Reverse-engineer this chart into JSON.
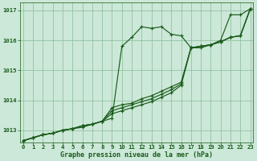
{
  "title": "Graphe pression niveau de la mer (hPa)",
  "xlabel": "Graphe pression niveau de la mer (hPa)",
  "ylim": [
    1012.6,
    1017.25
  ],
  "xlim": [
    -0.3,
    23.3
  ],
  "yticks": [
    1013,
    1014,
    1015,
    1016,
    1017
  ],
  "xticks": [
    0,
    1,
    2,
    3,
    4,
    5,
    6,
    7,
    8,
    9,
    10,
    11,
    12,
    13,
    14,
    15,
    16,
    17,
    18,
    19,
    20,
    21,
    22,
    23
  ],
  "bg_color": "#cce8d8",
  "grid_color": "#88bb99",
  "line_color": "#1a5c1a",
  "curves": [
    [
      1012.65,
      1012.75,
      1012.85,
      1012.9,
      1013.0,
      1013.05,
      1013.1,
      1013.2,
      1013.3,
      1013.4,
      1015.8,
      1016.1,
      1016.45,
      1016.4,
      1016.45,
      1016.2,
      1016.15,
      1015.75,
      1015.75,
      1015.85,
      1016.0,
      1016.85,
      1016.85,
      1017.05
    ],
    [
      1012.65,
      1012.75,
      1012.85,
      1012.9,
      1013.0,
      1013.05,
      1013.15,
      1013.2,
      1013.3,
      1013.75,
      1013.85,
      1013.9,
      1014.05,
      1014.15,
      1014.3,
      1014.45,
      1014.6,
      1015.75,
      1015.8,
      1015.85,
      1015.95,
      1016.1,
      1016.15,
      1017.05
    ],
    [
      1012.65,
      1012.75,
      1012.85,
      1012.9,
      1013.0,
      1013.05,
      1013.15,
      1013.2,
      1013.3,
      1013.65,
      1013.75,
      1013.85,
      1013.95,
      1014.05,
      1014.2,
      1014.35,
      1014.55,
      1015.75,
      1015.8,
      1015.85,
      1015.95,
      1016.1,
      1016.15,
      1017.05
    ],
    [
      1012.65,
      1012.75,
      1012.85,
      1012.9,
      1013.0,
      1013.05,
      1013.15,
      1013.2,
      1013.3,
      1013.55,
      1013.65,
      1013.75,
      1013.85,
      1013.95,
      1014.1,
      1014.25,
      1014.5,
      1015.75,
      1015.8,
      1015.85,
      1015.95,
      1016.1,
      1016.15,
      1017.05
    ]
  ]
}
